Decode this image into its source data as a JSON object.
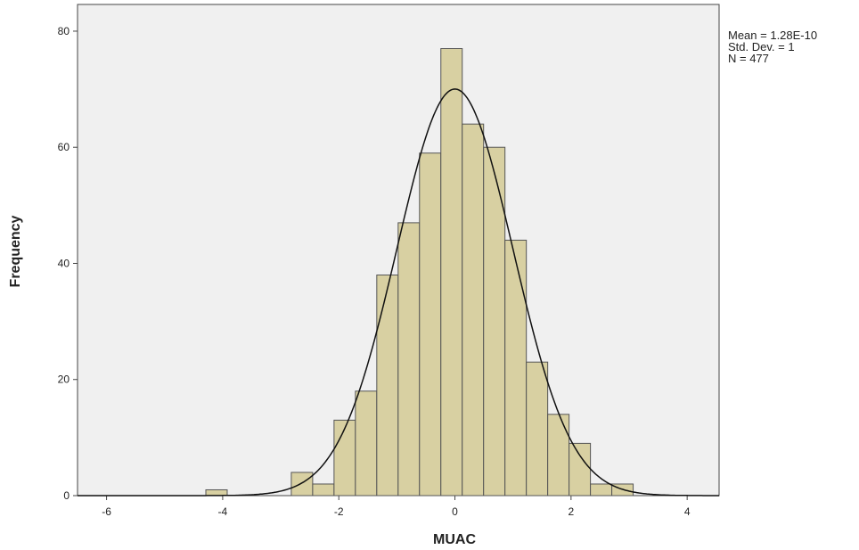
{
  "chart_data": {
    "type": "histogram",
    "xlabel": "MUAC",
    "ylabel": "Frequency",
    "bins": [
      -4.29,
      -3.922,
      -3.554,
      -3.186,
      -2.818,
      -2.45,
      -2.082,
      -1.714,
      -1.346,
      -0.978,
      -0.61,
      -0.242,
      0.126,
      0.494,
      0.862,
      1.23,
      1.598,
      1.966,
      2.334,
      2.702,
      3.07
    ],
    "counts": [
      1,
      0,
      0,
      0,
      4,
      2,
      13,
      18,
      38,
      47,
      59,
      77,
      64,
      60,
      44,
      23,
      14,
      9,
      2,
      2
    ],
    "color": "#d8d0a2",
    "edge_color": "#555555",
    "background": "#f0f0f0",
    "curve_color": "#111111",
    "xlim": [
      -6.5,
      4.55
    ],
    "ylim": [
      0,
      84.6
    ],
    "xticks": [
      -6,
      -4,
      -2,
      0,
      2,
      4
    ],
    "yticks": [
      0,
      20,
      40,
      60,
      80
    ],
    "stats": [
      {
        "value": 1.28e-10,
        "label": "Mean = 1.28E-10"
      },
      {
        "value": 1,
        "label": "Std. Dev. = 1"
      },
      {
        "value": 477,
        "label": "N = 477"
      }
    ]
  }
}
